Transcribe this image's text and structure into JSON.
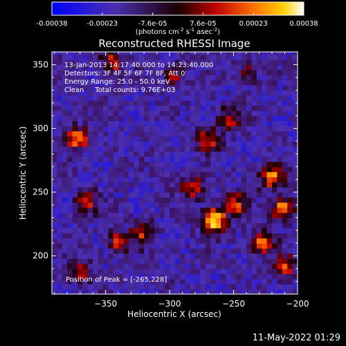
{
  "chart_data": {
    "type": "heatmap",
    "title": "Reconstructed RHESSI Image",
    "xlabel": "Heliocentric X (arcsec)",
    "ylabel": "Heliocentric Y (arcsec)",
    "xlim": [
      -392,
      -200
    ],
    "ylim": [
      170,
      360
    ],
    "x_ticks": [
      -350,
      -300,
      -250,
      -200
    ],
    "y_ticks": [
      200,
      250,
      300,
      350
    ],
    "colorbar": {
      "ticks": [
        "-0.00038",
        "-0.00023",
        "-7.6e-05",
        "7.6e-05",
        "0.00023",
        "0.00038"
      ],
      "unit_prefix": "(photons cm",
      "unit_exp1": "-2",
      "unit_mid1": " s",
      "unit_exp2": "-1",
      "unit_mid2": " asec",
      "unit_exp3": "-2",
      "unit_suffix": ")",
      "range": [
        -0.00038,
        0.00038
      ]
    },
    "annotations": {
      "line1": "13-Jan-2013 14:17:40.000 to 14:23:40.000",
      "line2": "Detectors: 3F 4F 5F 6F 7F 8F, Att 0",
      "line3": "Energy Range: 25.0 - 50.0 keV",
      "line4": "Clean     Total counts: 9.76E+03",
      "peak": "Position of Peak = [-265,228]"
    },
    "peak": [
      -265,
      228
    ],
    "sources": [
      {
        "x": -265,
        "y": 228,
        "v": 1.0
      },
      {
        "x": -250,
        "y": 240,
        "v": 0.62
      },
      {
        "x": -282,
        "y": 254,
        "v": 0.55
      },
      {
        "x": -270,
        "y": 292,
        "v": 0.6
      },
      {
        "x": -254,
        "y": 308,
        "v": 0.5
      },
      {
        "x": -220,
        "y": 262,
        "v": 0.72
      },
      {
        "x": -212,
        "y": 238,
        "v": 0.7
      },
      {
        "x": -228,
        "y": 210,
        "v": 0.7
      },
      {
        "x": -210,
        "y": 192,
        "v": 0.55
      },
      {
        "x": -372,
        "y": 292,
        "v": 0.68
      },
      {
        "x": -365,
        "y": 242,
        "v": 0.5
      },
      {
        "x": -340,
        "y": 212,
        "v": 0.52
      },
      {
        "x": -322,
        "y": 218,
        "v": 0.55
      },
      {
        "x": -345,
        "y": 352,
        "v": 0.55
      },
      {
        "x": -296,
        "y": 342,
        "v": 0.42
      },
      {
        "x": -240,
        "y": 345,
        "v": 0.35
      },
      {
        "x": -370,
        "y": 188,
        "v": 0.42
      }
    ]
  },
  "footer": {
    "timestamp": "11-May-2022 01:29"
  }
}
